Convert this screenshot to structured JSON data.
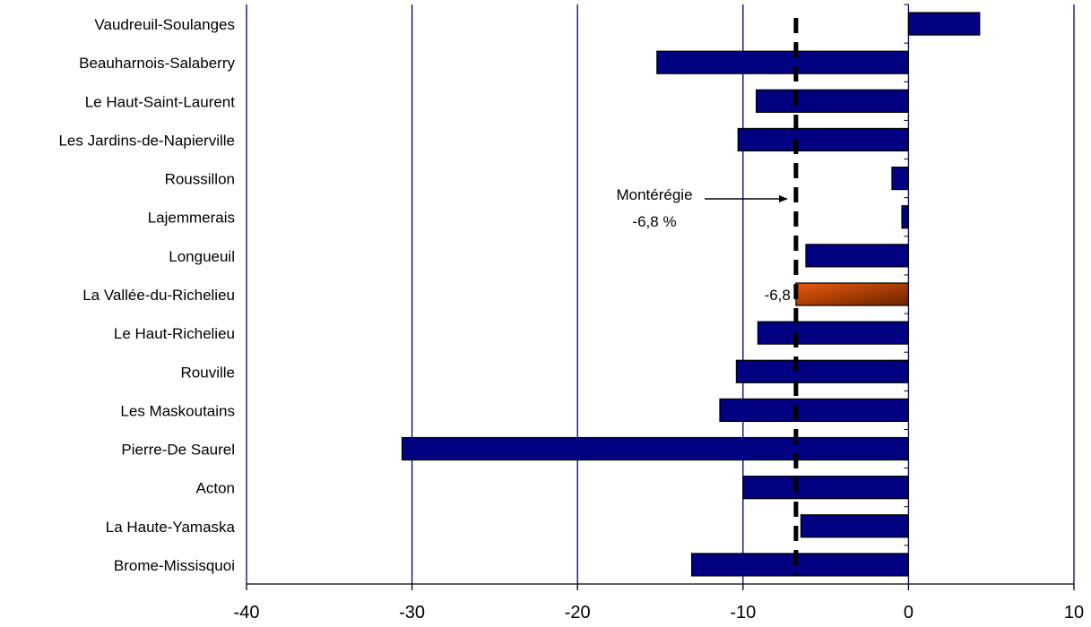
{
  "chart_data": {
    "type": "bar",
    "orientation": "horizontal",
    "categories": [
      "Vaudreuil-Soulanges",
      "Beauharnois-Salaberry",
      "Le Haut-Saint-Laurent",
      "Les Jardins-de-Napierville",
      "Roussillon",
      "Lajemmerais",
      "Longueuil",
      "La Vallée-du-Richelieu",
      "Le Haut-Richelieu",
      "Rouville",
      "Les Maskoutains",
      "Pierre-De Saurel",
      "Acton",
      "La Haute-Yamaska",
      "Brome-Missisquoi"
    ],
    "values": [
      4.3,
      -15.2,
      -9.2,
      -10.3,
      -1.0,
      -0.4,
      -6.2,
      -6.8,
      -9.1,
      -10.4,
      -11.4,
      -30.6,
      -10.0,
      -6.5,
      -13.1
    ],
    "highlight_index": 7,
    "highlight_label": "-6,8",
    "xlim": [
      -40,
      10
    ],
    "xticks": [
      "-40",
      "-30",
      "-20",
      "-10",
      "0",
      "10"
    ],
    "xtick_values": [
      -40,
      -30,
      -20,
      -10,
      0,
      10
    ],
    "grid": "vertical",
    "reference_line": {
      "value": -6.8,
      "style": "dashed",
      "label_line1": "Montérégie",
      "label_line2": "-6,8 %"
    },
    "colors": {
      "bar": "#000080",
      "highlight_light": "#e85a0c",
      "highlight_dark": "#6b2200",
      "grid": "#000080",
      "reference": "#000000"
    },
    "title": "",
    "xlabel": "",
    "ylabel": ""
  }
}
